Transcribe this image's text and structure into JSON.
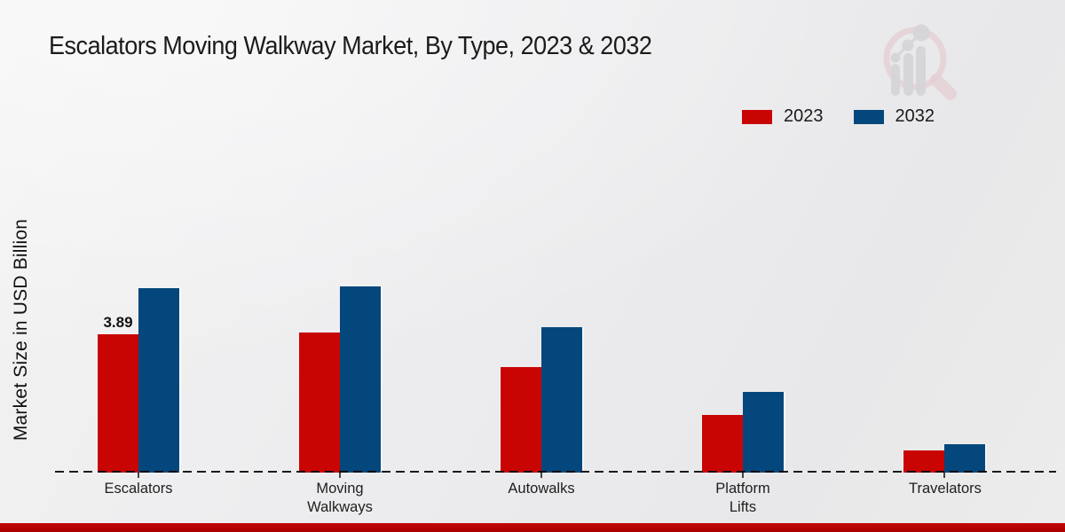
{
  "header": {
    "title": "Escalators Moving Walkway Market, By Type, 2023 & 2032"
  },
  "watermark_icon": "market-research-future-magnifier-bar-chart-logo",
  "colors": {
    "series_2023": "#c90504",
    "series_2032": "#04477c",
    "footer_band": "#b00300",
    "axis": "#1c1c1c"
  },
  "chart_data": {
    "type": "bar",
    "title": "Escalators Moving Walkway Market, By Type, 2023 & 2032",
    "xlabel": "",
    "ylabel": "Market Size in USD Billion",
    "categories": [
      "Escalators",
      "Moving Walkways",
      "Autowalks",
      "Platform Lifts",
      "Travelators"
    ],
    "series": [
      {
        "name": "2023",
        "color": "#c90504",
        "values": [
          3.89,
          3.94,
          2.97,
          1.62,
          0.62
        ]
      },
      {
        "name": "2032",
        "color": "#04477c",
        "values": [
          5.17,
          5.22,
          4.09,
          2.27,
          0.8
        ]
      }
    ],
    "bar_labels": [
      {
        "series": "2023",
        "category": "Escalators",
        "text": "3.89"
      }
    ],
    "ylim": [
      0,
      6
    ],
    "grid": false,
    "baseline_style": "dashed",
    "legend_position": "top-right"
  }
}
